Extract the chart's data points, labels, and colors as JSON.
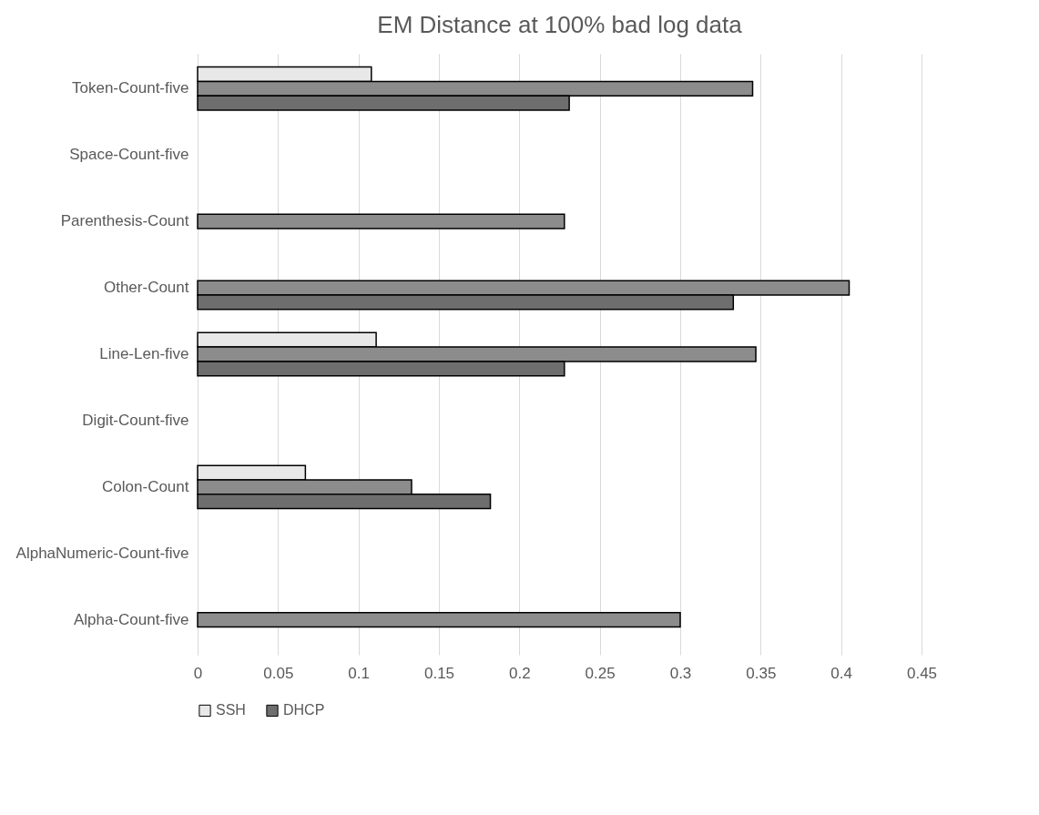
{
  "chart_data": {
    "type": "bar",
    "orientation": "horizontal",
    "title": "EM Distance at 100% bad log data",
    "categories": [
      "Token-Count-five",
      "Space-Count-five",
      "Parenthesis-Count",
      "Other-Count",
      "Line-Len-five",
      "Digit-Count-five",
      "Colon-Count",
      "AlphaNumeric-Count-five",
      "Alpha-Count-five"
    ],
    "series": [
      {
        "name": "SSH",
        "color": "#e8e8e8",
        "values": [
          0.108,
          null,
          null,
          null,
          0.111,
          null,
          0.067,
          null,
          null
        ]
      },
      {
        "color": "#8c8c8c",
        "values": [
          0.345,
          null,
          0.228,
          0.405,
          0.347,
          null,
          0.133,
          null,
          0.3
        ]
      },
      {
        "name": "DHCP",
        "color": "#6e6e6e",
        "values": [
          0.231,
          null,
          null,
          0.333,
          0.228,
          null,
          0.182,
          null,
          null
        ]
      }
    ],
    "xlim": [
      0,
      0.45
    ],
    "xticks": [
      0,
      0.05,
      0.1,
      0.15,
      0.2,
      0.25,
      0.3,
      0.35,
      0.4,
      0.45
    ],
    "grid": "x",
    "legend": "bottom"
  }
}
